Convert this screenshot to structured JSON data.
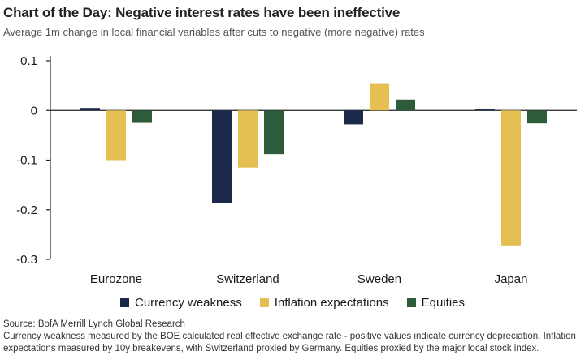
{
  "title": "Chart of the Day: Negative interest rates have been ineffective",
  "subtitle": "Average 1m change in local financial variables after cuts to negative (more negative) rates",
  "source": "Source: BofA Merrill Lynch Global Research",
  "footnote": "Currency weakness measured by the BOE calculated real effective exchange rate - positive values indicate currency depreciation. Inflation expectations measured by 10y breakevens, with Switzerland proxied by Germany. Equities proxied by the major local stock index.",
  "chart_data": {
    "type": "bar",
    "title": "",
    "xlabel": "",
    "ylabel": "",
    "categories": [
      "Eurozone",
      "Switzerland",
      "Sweden",
      "Japan"
    ],
    "series": [
      {
        "name": "Currency weakness",
        "color": "#1b2a4a",
        "values": [
          0.005,
          -0.187,
          -0.028,
          0.002
        ]
      },
      {
        "name": "Inflation expectations",
        "color": "#e6bf52",
        "values": [
          -0.1,
          -0.115,
          0.055,
          -0.272
        ]
      },
      {
        "name": "Equities",
        "color": "#2e5c3a",
        "values": [
          -0.025,
          -0.088,
          0.022,
          -0.026
        ]
      }
    ],
    "ylim": [
      -0.3,
      0.1
    ],
    "yticks": [
      "0.1",
      "0",
      "-0.1",
      "-0.2",
      "-0.3"
    ],
    "ytick_values": [
      0.1,
      0,
      -0.1,
      -0.2,
      -0.3
    ],
    "grid": false,
    "legend": "bottom"
  }
}
